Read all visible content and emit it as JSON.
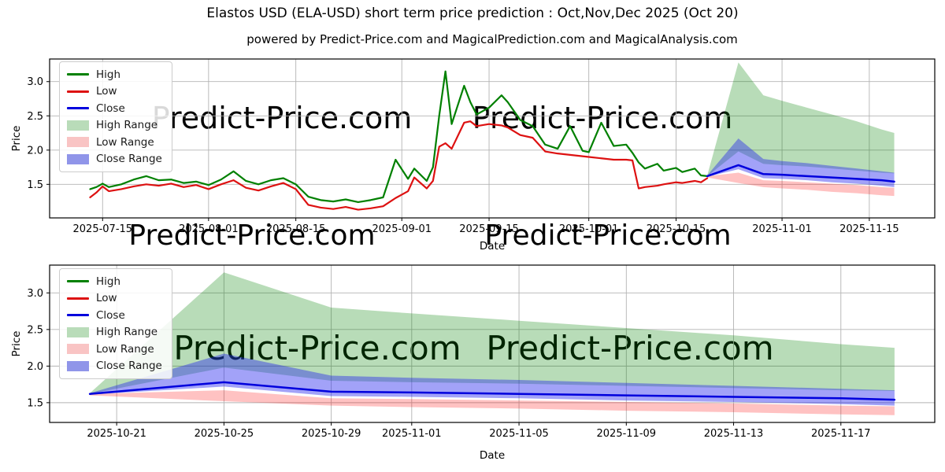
{
  "header": {
    "title": "Elastos USD (ELA-USD) short term price prediction : Oct,Nov,Dec 2025 (Oct 20)",
    "subtitle": "powered by Predict-Price.com and MagicalPrediction.com and MagicalAnalysis.com"
  },
  "watermark_text": "Predict-Price.com",
  "colors": {
    "high_line": "#008000",
    "low_line": "#dd1111",
    "close_line": "#0000dd",
    "high_fill": "#008000",
    "low_fill": "#ff0000",
    "close_fill": "#2222ee",
    "grid": "#b3b3b3",
    "spine": "#000000",
    "watermark": "#d7d7d7"
  },
  "legend": [
    {
      "label": "High",
      "swatch": "line",
      "color": "#008000"
    },
    {
      "label": "Low",
      "swatch": "line",
      "color": "#dd1111"
    },
    {
      "label": "Close",
      "swatch": "line",
      "color": "#0000dd"
    },
    {
      "label": "High Range",
      "swatch": "fill",
      "color": "#b9dcb9"
    },
    {
      "label": "Low Range",
      "swatch": "fill",
      "color": "#f9c4c4"
    },
    {
      "label": "Close Range",
      "swatch": "fill",
      "color": "#9095e9"
    }
  ],
  "chart_data": [
    {
      "id": "history-chart",
      "type": "line",
      "xlabel": "Date",
      "ylabel": "Price",
      "xlim": [
        "2025-07-06T12:00:00Z",
        "2025-11-25T12:00:00Z"
      ],
      "ylim": [
        1.01,
        3.33
      ],
      "yticks": [
        1.5,
        2.0,
        2.5,
        3.0
      ],
      "xticks": [
        "2025-07-15",
        "2025-08-01",
        "2025-08-15",
        "2025-09-01",
        "2025-09-15",
        "2025-10-01",
        "2025-10-15",
        "2025-11-01",
        "2025-11-15"
      ],
      "history": {
        "dates": [
          "2025-07-13",
          "2025-07-14",
          "2025-07-15",
          "2025-07-16",
          "2025-07-18",
          "2025-07-20",
          "2025-07-22",
          "2025-07-24",
          "2025-07-26",
          "2025-07-28",
          "2025-07-30",
          "2025-08-01",
          "2025-08-03",
          "2025-08-05",
          "2025-08-07",
          "2025-08-09",
          "2025-08-11",
          "2025-08-13",
          "2025-08-15",
          "2025-08-17",
          "2025-08-19",
          "2025-08-21",
          "2025-08-23",
          "2025-08-25",
          "2025-08-27",
          "2025-08-29",
          "2025-08-31",
          "2025-09-02",
          "2025-09-03",
          "2025-09-05",
          "2025-09-06",
          "2025-09-07",
          "2025-09-08",
          "2025-09-09",
          "2025-09-11",
          "2025-09-12",
          "2025-09-13",
          "2025-09-15",
          "2025-09-17",
          "2025-09-18",
          "2025-09-20",
          "2025-09-22",
          "2025-09-24",
          "2025-09-26",
          "2025-09-28",
          "2025-09-30",
          "2025-10-01",
          "2025-10-03",
          "2025-10-05",
          "2025-10-07",
          "2025-10-08",
          "2025-10-09",
          "2025-10-10",
          "2025-10-12",
          "2025-10-13",
          "2025-10-15",
          "2025-10-16",
          "2025-10-18",
          "2025-10-19",
          "2025-10-20"
        ],
        "high": [
          1.43,
          1.46,
          1.51,
          1.46,
          1.5,
          1.57,
          1.62,
          1.56,
          1.57,
          1.52,
          1.54,
          1.49,
          1.57,
          1.69,
          1.55,
          1.5,
          1.56,
          1.59,
          1.5,
          1.32,
          1.27,
          1.25,
          1.28,
          1.24,
          1.27,
          1.31,
          1.86,
          1.58,
          1.73,
          1.55,
          1.75,
          2.5,
          3.15,
          2.38,
          2.94,
          2.7,
          2.52,
          2.62,
          2.8,
          2.7,
          2.44,
          2.35,
          2.08,
          2.02,
          2.35,
          1.99,
          1.97,
          2.4,
          2.06,
          2.08,
          1.96,
          1.82,
          1.73,
          1.8,
          1.7,
          1.74,
          1.68,
          1.73,
          1.63,
          1.62
        ],
        "low": [
          1.31,
          1.38,
          1.47,
          1.4,
          1.43,
          1.47,
          1.5,
          1.48,
          1.51,
          1.46,
          1.49,
          1.43,
          1.5,
          1.56,
          1.45,
          1.41,
          1.47,
          1.52,
          1.43,
          1.2,
          1.16,
          1.14,
          1.17,
          1.13,
          1.15,
          1.18,
          1.3,
          1.4,
          1.6,
          1.44,
          1.55,
          2.05,
          2.1,
          2.02,
          2.4,
          2.42,
          2.35,
          2.38,
          2.36,
          2.33,
          2.22,
          2.18,
          1.98,
          1.95,
          1.93,
          1.91,
          1.9,
          1.88,
          1.86,
          1.86,
          1.85,
          1.44,
          1.46,
          1.48,
          1.5,
          1.53,
          1.52,
          1.55,
          1.53,
          1.59
        ]
      },
      "forecast": {
        "dates": [
          "2025-10-20",
          "2025-10-25",
          "2025-10-29",
          "2025-11-01",
          "2025-11-05",
          "2025-11-09",
          "2025-11-13",
          "2025-11-17",
          "2025-11-19"
        ],
        "high_hi": [
          1.63,
          3.28,
          2.8,
          2.72,
          2.62,
          2.52,
          2.42,
          2.3,
          2.25
        ],
        "high_lo": [
          1.62,
          1.98,
          1.8,
          1.78,
          1.76,
          1.73,
          1.7,
          1.67,
          1.66
        ],
        "close_hi": [
          1.63,
          2.17,
          1.87,
          1.84,
          1.81,
          1.77,
          1.73,
          1.69,
          1.67
        ],
        "close": [
          1.62,
          1.78,
          1.65,
          1.64,
          1.62,
          1.6,
          1.58,
          1.56,
          1.54
        ],
        "close_lo": [
          1.61,
          1.72,
          1.59,
          1.58,
          1.56,
          1.53,
          1.51,
          1.48,
          1.46
        ],
        "low_hi": [
          1.62,
          1.67,
          1.56,
          1.55,
          1.53,
          1.51,
          1.49,
          1.46,
          1.45
        ],
        "low_lo": [
          1.6,
          1.52,
          1.46,
          1.44,
          1.42,
          1.39,
          1.37,
          1.34,
          1.33
        ]
      },
      "legend_position": "upper left",
      "grid": true
    },
    {
      "id": "forecast-chart",
      "type": "line",
      "xlabel": "Date",
      "ylabel": "Price",
      "xlim": [
        "2025-10-18T12:00:00Z",
        "2025-11-20T12:00:00Z"
      ],
      "ylim": [
        1.23,
        3.38
      ],
      "yticks": [
        1.5,
        2.0,
        2.5,
        3.0
      ],
      "xticks": [
        "2025-10-21",
        "2025-10-25",
        "2025-10-29",
        "2025-11-01",
        "2025-11-05",
        "2025-11-09",
        "2025-11-13",
        "2025-11-17"
      ],
      "forecast": {
        "dates": [
          "2025-10-20",
          "2025-10-25",
          "2025-10-29",
          "2025-11-01",
          "2025-11-05",
          "2025-11-09",
          "2025-11-13",
          "2025-11-17",
          "2025-11-19"
        ],
        "high_hi": [
          1.63,
          3.28,
          2.8,
          2.72,
          2.62,
          2.52,
          2.42,
          2.3,
          2.25
        ],
        "high_lo": [
          1.62,
          1.98,
          1.8,
          1.78,
          1.76,
          1.73,
          1.7,
          1.67,
          1.66
        ],
        "close_hi": [
          1.63,
          2.17,
          1.87,
          1.84,
          1.81,
          1.77,
          1.73,
          1.69,
          1.67
        ],
        "close": [
          1.62,
          1.78,
          1.65,
          1.64,
          1.62,
          1.6,
          1.58,
          1.56,
          1.54
        ],
        "close_lo": [
          1.61,
          1.72,
          1.59,
          1.58,
          1.56,
          1.53,
          1.51,
          1.48,
          1.46
        ],
        "low_hi": [
          1.62,
          1.67,
          1.56,
          1.55,
          1.53,
          1.51,
          1.49,
          1.46,
          1.45
        ],
        "low_lo": [
          1.6,
          1.52,
          1.46,
          1.44,
          1.42,
          1.39,
          1.37,
          1.34,
          1.33
        ]
      },
      "legend_position": "upper left",
      "grid": true
    }
  ]
}
